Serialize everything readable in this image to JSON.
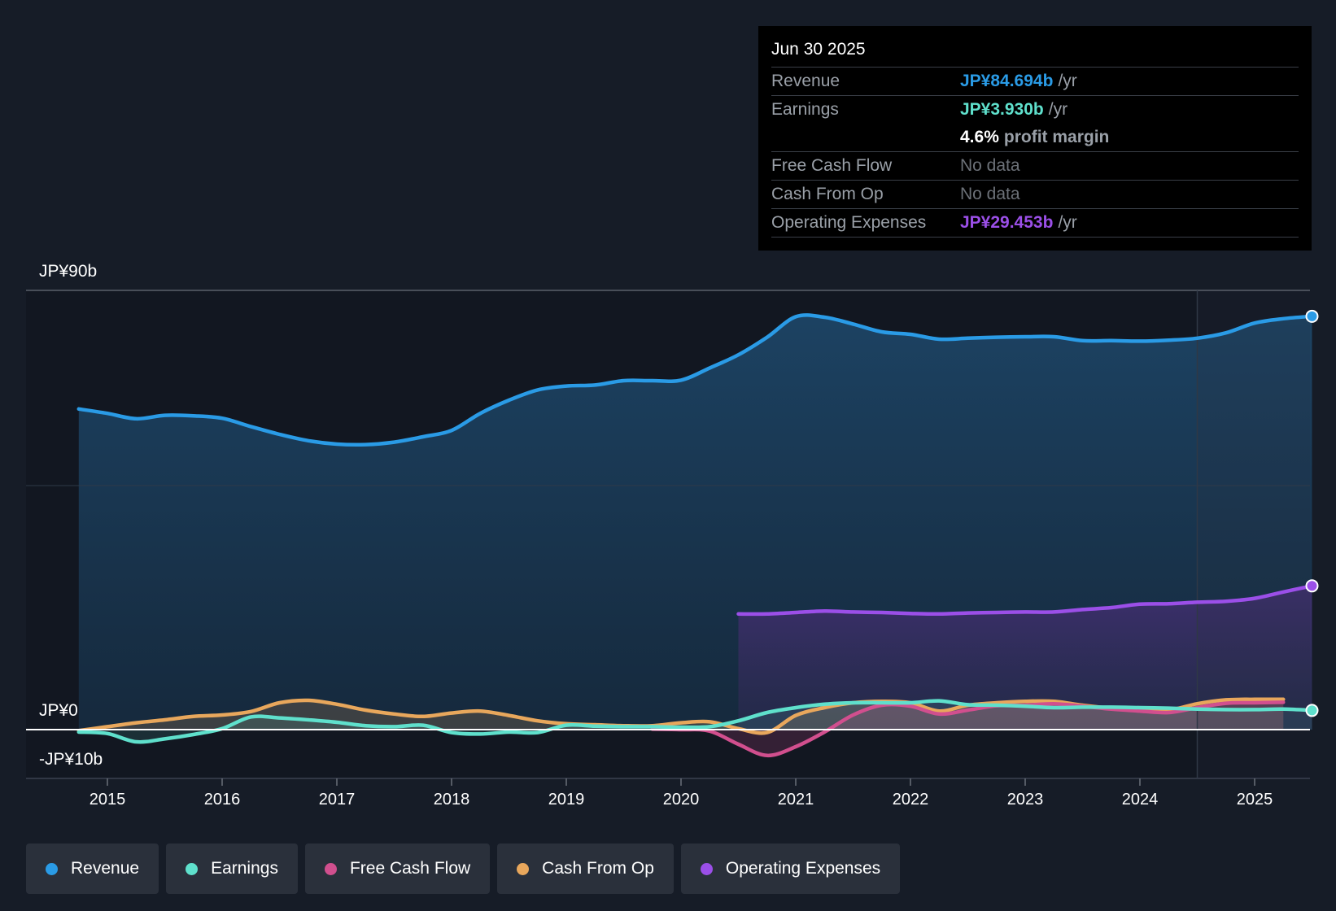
{
  "chart_data": {
    "type": "area",
    "y_axis": {
      "max_label": "JP¥90b",
      "zero_label": "JP¥0",
      "min_label": "-JP¥10b",
      "ylim": [
        -10,
        90
      ]
    },
    "x_axis": {
      "ticks": [
        "2015",
        "2016",
        "2017",
        "2018",
        "2019",
        "2020",
        "2021",
        "2022",
        "2023",
        "2024",
        "2025"
      ],
      "xlim": [
        2014.0,
        2025.5
      ]
    },
    "series": [
      {
        "name": "Revenue",
        "color": "#2a9be6",
        "x": [
          2014.75,
          2015.0,
          2015.25,
          2015.5,
          2015.75,
          2016.0,
          2016.25,
          2016.5,
          2016.75,
          2017.0,
          2017.25,
          2017.5,
          2017.75,
          2018.0,
          2018.25,
          2018.5,
          2018.75,
          2019.0,
          2019.25,
          2019.5,
          2019.75,
          2020.0,
          2020.25,
          2020.5,
          2020.75,
          2021.0,
          2021.25,
          2021.5,
          2021.75,
          2022.0,
          2022.25,
          2022.5,
          2022.75,
          2023.0,
          2023.25,
          2023.5,
          2023.75,
          2024.0,
          2024.25,
          2024.5,
          2024.75,
          2025.0,
          2025.25,
          2025.5
        ],
        "values": [
          65.7,
          64.8,
          63.7,
          64.4,
          64.3,
          63.8,
          62.1,
          60.5,
          59.2,
          58.5,
          58.4,
          58.9,
          60.0,
          61.3,
          64.8,
          67.5,
          69.6,
          70.4,
          70.6,
          71.5,
          71.5,
          71.6,
          74.1,
          76.8,
          80.4,
          84.6,
          84.5,
          83.1,
          81.5,
          81.0,
          80.0,
          80.2,
          80.4,
          80.5,
          80.5,
          79.7,
          79.7,
          79.6,
          79.8,
          80.2,
          81.3,
          83.3,
          84.2,
          84.694
        ]
      },
      {
        "name": "Earnings",
        "color": "#5fe0cc",
        "x": [
          2014.75,
          2015.0,
          2015.25,
          2015.5,
          2015.75,
          2016.0,
          2016.25,
          2016.5,
          2016.75,
          2017.0,
          2017.25,
          2017.5,
          2017.75,
          2018.0,
          2018.25,
          2018.5,
          2018.75,
          2019.0,
          2019.25,
          2019.5,
          2019.75,
          2020.0,
          2020.25,
          2020.5,
          2020.75,
          2021.0,
          2021.25,
          2021.5,
          2021.75,
          2022.0,
          2022.25,
          2022.5,
          2022.75,
          2023.0,
          2023.25,
          2023.5,
          2023.75,
          2024.0,
          2024.25,
          2024.5,
          2024.75,
          2025.0,
          2025.25,
          2025.5
        ],
        "values": [
          -0.5,
          -0.8,
          -2.5,
          -1.9,
          -1.0,
          0.2,
          2.6,
          2.4,
          2.0,
          1.5,
          0.8,
          0.6,
          0.9,
          -0.6,
          -0.9,
          -0.5,
          -0.6,
          0.9,
          0.7,
          0.6,
          0.6,
          0.5,
          0.6,
          1.8,
          3.5,
          4.5,
          5.2,
          5.5,
          5.5,
          5.5,
          5.9,
          5.1,
          5.0,
          4.8,
          4.5,
          4.6,
          4.6,
          4.5,
          4.4,
          4.2,
          4.1,
          4.1,
          4.2,
          3.93
        ]
      },
      {
        "name": "Free Cash Flow",
        "color": "#d14f8e",
        "x": [
          2019.75,
          2020.0,
          2020.25,
          2020.5,
          2020.75,
          2021.0,
          2021.25,
          2021.5,
          2021.75,
          2022.0,
          2022.25,
          2022.5,
          2022.75,
          2023.0,
          2023.25,
          2023.5,
          2023.75,
          2024.0,
          2024.25,
          2024.5,
          2024.75,
          2025.0,
          2025.25
        ],
        "values": [
          0.1,
          0.0,
          -0.3,
          -3.0,
          -5.3,
          -3.5,
          -0.5,
          3.0,
          5.0,
          4.8,
          3.2,
          4.0,
          4.9,
          5.0,
          5.3,
          4.8,
          4.2,
          3.8,
          3.5,
          4.5,
          5.4,
          5.5,
          5.6
        ]
      },
      {
        "name": "Cash From Op",
        "color": "#e8a75c",
        "x": [
          2014.75,
          2015.0,
          2015.25,
          2015.5,
          2015.75,
          2016.0,
          2016.25,
          2016.5,
          2016.75,
          2017.0,
          2017.25,
          2017.5,
          2017.75,
          2018.0,
          2018.25,
          2018.5,
          2018.75,
          2019.0,
          2019.25,
          2019.5,
          2019.75,
          2020.0,
          2020.25,
          2020.5,
          2020.75,
          2021.0,
          2021.25,
          2021.5,
          2021.75,
          2022.0,
          2022.25,
          2022.5,
          2022.75,
          2023.0,
          2023.25,
          2023.5,
          2023.75,
          2024.0,
          2024.25,
          2024.5,
          2024.75,
          2025.0,
          2025.25
        ],
        "values": [
          -0.2,
          0.6,
          1.4,
          2.0,
          2.7,
          3.0,
          3.7,
          5.5,
          6.0,
          5.2,
          4.0,
          3.2,
          2.7,
          3.4,
          3.8,
          2.9,
          1.8,
          1.2,
          1.0,
          0.8,
          0.8,
          1.4,
          1.6,
          0.2,
          -0.6,
          2.9,
          4.5,
          5.5,
          5.8,
          5.5,
          3.8,
          5.0,
          5.5,
          5.8,
          5.8,
          5.0,
          4.4,
          4.2,
          4.0,
          5.3,
          6.1,
          6.2,
          6.2
        ]
      },
      {
        "name": "Operating Expenses",
        "color": "#9b4fe8",
        "x": [
          2020.5,
          2020.75,
          2021.0,
          2021.25,
          2021.5,
          2021.75,
          2022.0,
          2022.25,
          2022.5,
          2022.75,
          2023.0,
          2023.25,
          2023.5,
          2023.75,
          2024.0,
          2024.25,
          2024.5,
          2024.75,
          2025.0,
          2025.25,
          2025.5
        ],
        "values": [
          23.7,
          23.7,
          24.0,
          24.3,
          24.1,
          24.0,
          23.8,
          23.7,
          23.9,
          24.0,
          24.1,
          24.1,
          24.6,
          25.0,
          25.7,
          25.8,
          26.1,
          26.3,
          26.9,
          28.2,
          29.453
        ]
      }
    ],
    "forecast_region_start": 2024.5
  },
  "tooltip": {
    "date": "Jun 30 2025",
    "rows": [
      {
        "label": "Revenue",
        "value": "JP¥84.694b",
        "unit": "/yr",
        "color": "#2a9be6"
      },
      {
        "label": "Earnings",
        "value": "JP¥3.930b",
        "unit": "/yr",
        "color": "#5fe0cc"
      },
      {
        "label": "",
        "value": "4.6%",
        "unit": "profit margin",
        "color": "#ffffff"
      },
      {
        "label": "Free Cash Flow",
        "value": "No data",
        "unit": "",
        "color": ""
      },
      {
        "label": "Cash From Op",
        "value": "No data",
        "unit": "",
        "color": ""
      },
      {
        "label": "Operating Expenses",
        "value": "JP¥29.453b",
        "unit": "/yr",
        "color": "#9b4fe8"
      }
    ]
  },
  "legend": [
    {
      "label": "Revenue",
      "color": "#2a9be6"
    },
    {
      "label": "Earnings",
      "color": "#5fe0cc"
    },
    {
      "label": "Free Cash Flow",
      "color": "#d14f8e"
    },
    {
      "label": "Cash From Op",
      "color": "#e8a75c"
    },
    {
      "label": "Operating Expenses",
      "color": "#9b4fe8"
    }
  ]
}
